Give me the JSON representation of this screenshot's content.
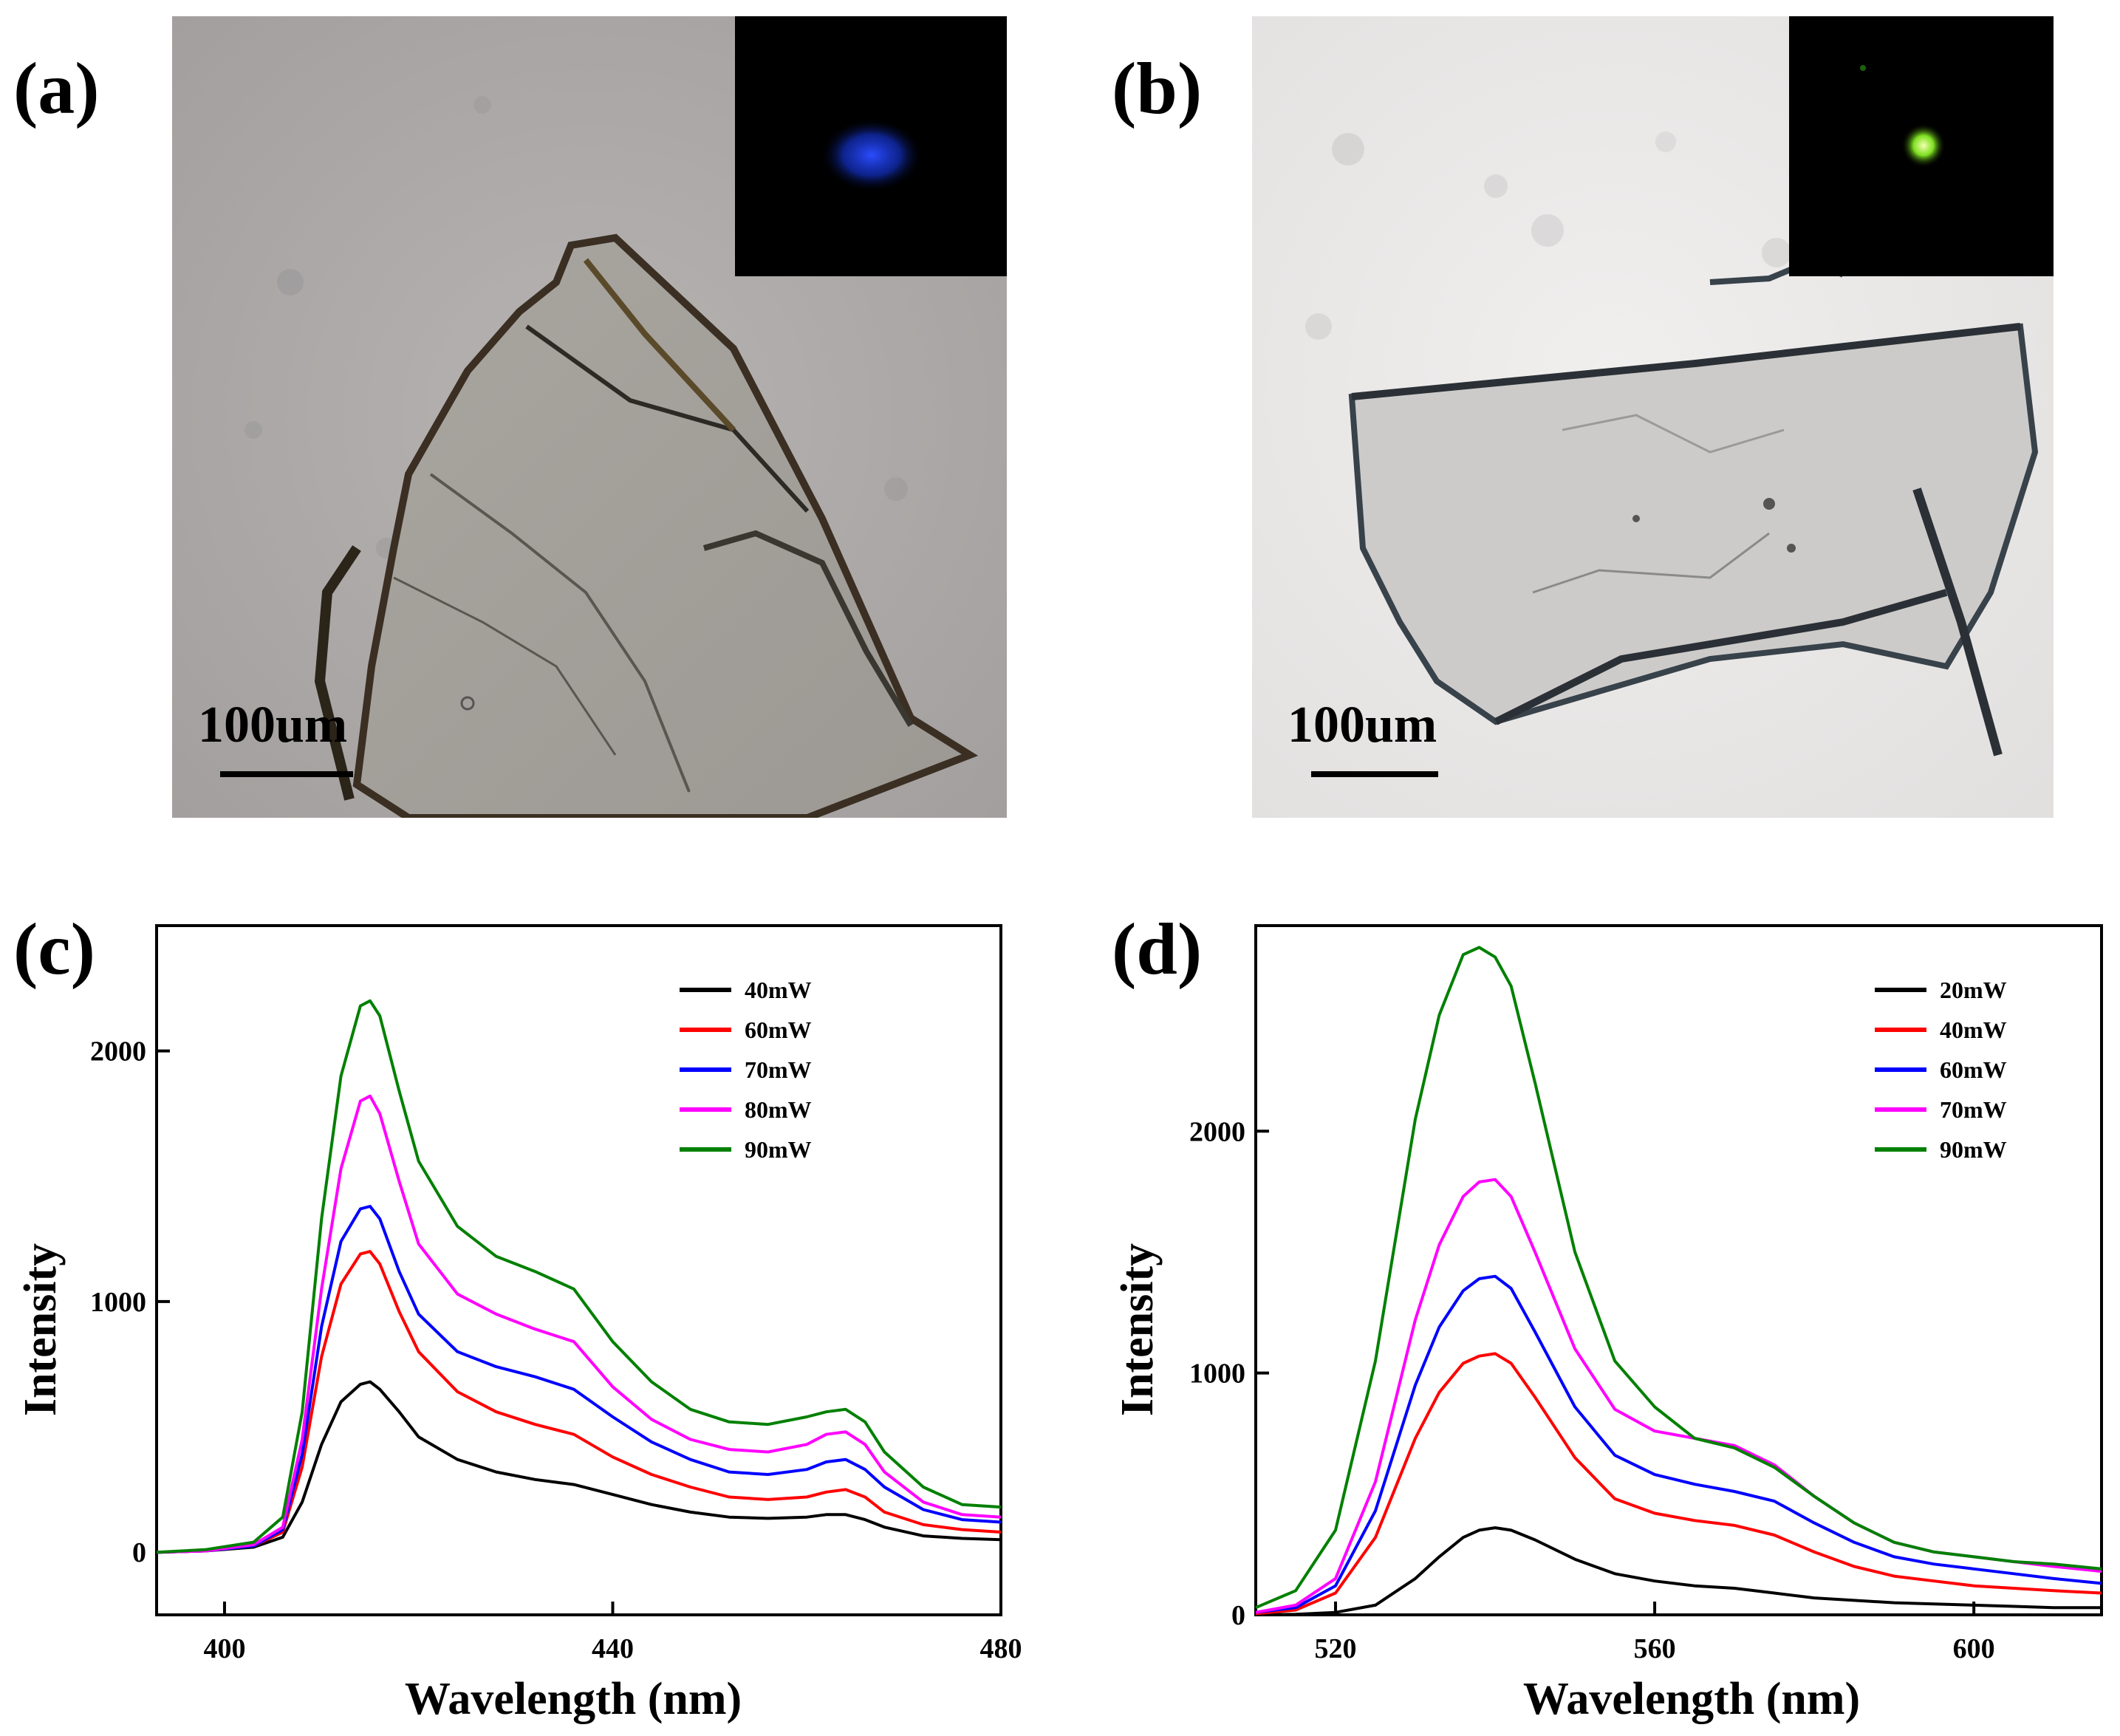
{
  "panels": {
    "a": {
      "label": "(a)",
      "scale_label": "100um",
      "inset_color": "#1f3cff"
    },
    "b": {
      "label": "(b)",
      "scale_label": "100um",
      "inset_color": "#a8ff30"
    },
    "c": {
      "label": "(c)"
    },
    "d": {
      "label": "(d)"
    }
  },
  "chart_data": [
    {
      "type": "line",
      "panel": "c",
      "xlabel": "Wavelength (nm)",
      "ylabel": "Intensity",
      "xlim": [
        393,
        480
      ],
      "ylim": [
        -250,
        2500
      ],
      "xticks": [
        400,
        440,
        480
      ],
      "yticks": [
        0,
        1000,
        2000
      ],
      "grid": false,
      "legend_position": "top-right",
      "x": [
        393,
        398,
        403,
        406,
        408,
        410,
        412,
        414,
        415,
        416,
        418,
        420,
        424,
        428,
        432,
        436,
        440,
        444,
        448,
        452,
        456,
        460,
        462,
        464,
        466,
        468,
        472,
        476,
        480
      ],
      "series": [
        {
          "name": "40mW",
          "color": "#000000",
          "values": [
            0,
            5,
            20,
            60,
            200,
            430,
            600,
            670,
            680,
            650,
            560,
            460,
            370,
            320,
            290,
            270,
            230,
            190,
            160,
            140,
            135,
            140,
            150,
            150,
            130,
            100,
            65,
            55,
            50
          ]
        },
        {
          "name": "60mW",
          "color": "#ff0000",
          "values": [
            0,
            5,
            25,
            80,
            340,
            780,
            1070,
            1190,
            1200,
            1150,
            960,
            800,
            640,
            560,
            510,
            470,
            380,
            310,
            260,
            220,
            210,
            220,
            240,
            250,
            220,
            160,
            110,
            90,
            80
          ]
        },
        {
          "name": "70mW",
          "color": "#0000ff",
          "values": [
            0,
            5,
            25,
            90,
            390,
            900,
            1240,
            1370,
            1380,
            1330,
            1120,
            950,
            800,
            740,
            700,
            650,
            540,
            440,
            370,
            320,
            310,
            330,
            360,
            370,
            330,
            260,
            170,
            130,
            120
          ]
        },
        {
          "name": "80mW",
          "color": "#ff00ff",
          "values": [
            0,
            5,
            30,
            100,
            450,
            1050,
            1530,
            1800,
            1820,
            1750,
            1480,
            1230,
            1030,
            950,
            890,
            840,
            660,
            530,
            450,
            410,
            400,
            430,
            470,
            480,
            430,
            320,
            200,
            150,
            140
          ]
        },
        {
          "name": "90mW",
          "color": "#008000",
          "values": [
            0,
            10,
            40,
            140,
            560,
            1330,
            1900,
            2180,
            2200,
            2140,
            1840,
            1560,
            1300,
            1180,
            1120,
            1050,
            840,
            680,
            570,
            520,
            510,
            540,
            560,
            570,
            520,
            400,
            260,
            190,
            180
          ]
        }
      ]
    },
    {
      "type": "line",
      "panel": "d",
      "xlabel": "Wavelength (nm)",
      "ylabel": "Intensity",
      "xlim": [
        510,
        616
      ],
      "ylim": [
        0,
        2850
      ],
      "xticks": [
        520,
        560,
        600
      ],
      "yticks": [
        0,
        1000,
        2000
      ],
      "grid": false,
      "legend_position": "top-right",
      "x": [
        510,
        515,
        520,
        525,
        530,
        533,
        536,
        538,
        540,
        542,
        545,
        550,
        555,
        560,
        565,
        570,
        575,
        580,
        585,
        590,
        595,
        600,
        605,
        610,
        616
      ],
      "series": [
        {
          "name": "20mW",
          "color": "#000000",
          "values": [
            0,
            2,
            10,
            40,
            150,
            240,
            320,
            350,
            360,
            350,
            310,
            230,
            170,
            140,
            120,
            110,
            90,
            70,
            60,
            50,
            45,
            40,
            35,
            30,
            30
          ]
        },
        {
          "name": "40mW",
          "color": "#ff0000",
          "values": [
            5,
            20,
            90,
            320,
            730,
            920,
            1040,
            1070,
            1080,
            1040,
            900,
            650,
            480,
            420,
            390,
            370,
            330,
            260,
            200,
            160,
            140,
            120,
            110,
            100,
            90
          ]
        },
        {
          "name": "60mW",
          "color": "#0000ff",
          "values": [
            10,
            30,
            120,
            430,
            950,
            1190,
            1340,
            1390,
            1400,
            1350,
            1170,
            860,
            660,
            580,
            540,
            510,
            470,
            380,
            300,
            240,
            210,
            190,
            170,
            150,
            130
          ]
        },
        {
          "name": "70mW",
          "color": "#ff00ff",
          "values": [
            10,
            40,
            150,
            550,
            1220,
            1530,
            1730,
            1790,
            1800,
            1730,
            1500,
            1100,
            850,
            760,
            730,
            700,
            620,
            490,
            380,
            300,
            260,
            240,
            220,
            200,
            180
          ]
        },
        {
          "name": "90mW",
          "color": "#008000",
          "values": [
            30,
            100,
            350,
            1050,
            2050,
            2480,
            2730,
            2760,
            2720,
            2600,
            2200,
            1500,
            1050,
            860,
            730,
            690,
            610,
            490,
            380,
            300,
            260,
            240,
            220,
            210,
            190
          ]
        }
      ]
    }
  ]
}
